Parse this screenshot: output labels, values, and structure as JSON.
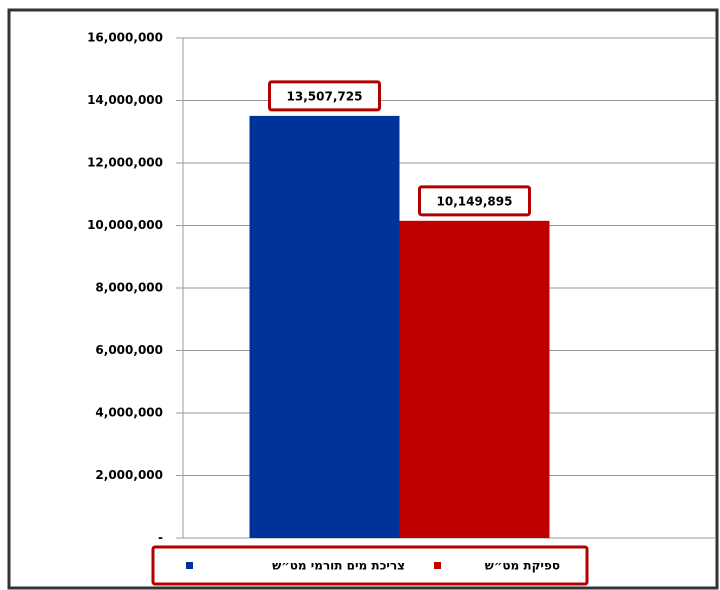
{
  "chart_data": {
    "type": "bar",
    "categories": [
      null
    ],
    "series": [
      {
        "name": "צריכת מים תורמי מט״ש",
        "color": "#003399",
        "values": [
          13507725
        ],
        "value_labels": [
          "13,507,725"
        ]
      },
      {
        "name": "ספיקת מט״ש",
        "color": "#c00000",
        "values": [
          10149895
        ],
        "value_labels": [
          "10,149,895"
        ]
      }
    ],
    "ylim": [
      0,
      16000000
    ],
    "yticks": [
      {
        "value": 0,
        "label": "-"
      },
      {
        "value": 2000000,
        "label": "2,000,000"
      },
      {
        "value": 4000000,
        "label": "4,000,000"
      },
      {
        "value": 6000000,
        "label": "6,000,000"
      },
      {
        "value": 8000000,
        "label": "8,000,000"
      },
      {
        "value": 10000000,
        "label": "10,000,000"
      },
      {
        "value": 12000000,
        "label": "12,000,000"
      },
      {
        "value": 14000000,
        "label": "14,000,000"
      },
      {
        "value": 16000000,
        "label": "16,000,000"
      }
    ],
    "grid": true,
    "legend": "bottom"
  }
}
